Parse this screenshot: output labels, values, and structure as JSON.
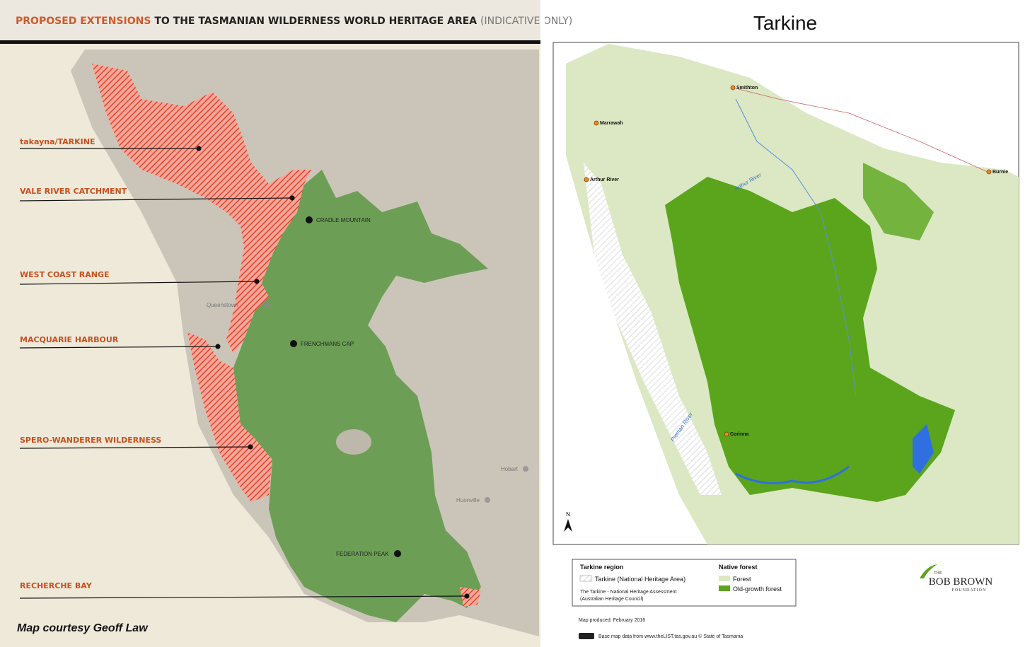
{
  "left_panel": {
    "title": {
      "highlight": "PROPOSED EXTENSIONS",
      "main": "TO THE TASMANIAN WILDERNESS WORLD HERITAGE AREA",
      "note": "(INDICATIVE ONLY)"
    },
    "extensions": [
      "takayna/TARKINE",
      "VALE RIVER CATCHMENT",
      "WEST COAST RANGE",
      "MACQUARIE HARBOUR",
      "SPERO-WANDERER WILDERNESS",
      "RECHERCHE BAY"
    ],
    "places": [
      "CRADLE MOUNTAIN",
      "Queenstown",
      "FRENCHMANS CAP",
      "Hobart",
      "Huonville",
      "FEDERATION PEAK"
    ],
    "credit": "Map courtesy Geoff Law"
  },
  "right_panel": {
    "title": "Tarkine",
    "towns": [
      "Smithton",
      "Marrawah",
      "Arthur River",
      "Burnie",
      "Corinna"
    ],
    "rivers": [
      "Arthur River",
      "Pieman River"
    ],
    "north": "N",
    "legend": {
      "region_heading": "Tarkine region",
      "region_item": "Tarkine (National Heritage Area)",
      "source_line1": "The Tarkine - National Heritage Assessment",
      "source_line2": "(Australian Heritage Council)",
      "forest_heading": "Native forest",
      "forest_item": "Forest",
      "oldgrowth_item": "Old-growth forest"
    },
    "map_produced": "Map produced: February 2016",
    "base_map_note": "Base map data from www.theLIST.tas.gov.au © State of Tasmania",
    "logo": {
      "the": "THE",
      "name": "BOB BROWN",
      "foundation": "FOUNDATION"
    }
  }
}
